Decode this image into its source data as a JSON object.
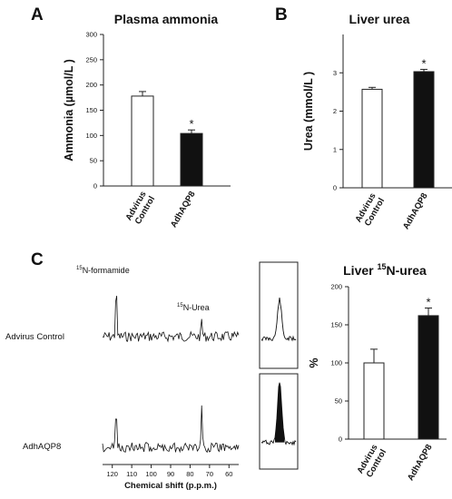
{
  "panel_letters": [
    "A",
    "B",
    "C"
  ],
  "chart_data": [
    {
      "panel": "A",
      "type": "bar",
      "title": "Plasma ammonia",
      "ylabel": "Ammonia (µmol/L )",
      "categories": [
        "Advirus Control",
        "AdhAQP8"
      ],
      "values": [
        178,
        104
      ],
      "errors": [
        9,
        7
      ],
      "ylim": [
        0,
        300
      ],
      "yticks": [
        "0",
        "50",
        "100",
        "150",
        "200",
        "250",
        "300"
      ],
      "significance": [
        "",
        "*"
      ],
      "colors": [
        "#ffffff",
        "#111111"
      ]
    },
    {
      "panel": "B",
      "type": "bar",
      "title": "Liver urea",
      "ylabel": "Urea (mmol/L )",
      "categories": [
        "Advirus Control",
        "AdhAQP8"
      ],
      "values": [
        2.57,
        3.03
      ],
      "errors": [
        0.05,
        0.06
      ],
      "ylim": [
        0,
        4
      ],
      "yticks": [
        "0",
        "1",
        "2",
        "3"
      ],
      "significance": [
        "",
        "*"
      ],
      "colors": [
        "#ffffff",
        "#111111"
      ]
    },
    {
      "panel": "C",
      "type": "bar",
      "title_main": "Liver ",
      "title_sup": "15",
      "title_tail": "N-urea",
      "ylabel": "%",
      "categories": [
        "Advirus Control",
        "AdhAQP8"
      ],
      "values": [
        100,
        162
      ],
      "errors": [
        18,
        10
      ],
      "ylim": [
        0,
        200
      ],
      "yticks": [
        "0",
        "50",
        "100",
        "150",
        "200"
      ],
      "significance": [
        "",
        "*"
      ],
      "colors": [
        "#ffffff",
        "#111111"
      ]
    },
    {
      "panel": "C-spectrum",
      "type": "line",
      "xlabel": "Chemical shift (p.p.m.)",
      "xlim": [
        125,
        55
      ],
      "xticks": [
        "120",
        "110",
        "100",
        "90",
        "80",
        "70",
        "60"
      ],
      "peaks": [
        {
          "sup": "15",
          "label": "N-formamide",
          "ppm": 118
        },
        {
          "sup": "15",
          "label": "N-Urea",
          "ppm": 74
        }
      ],
      "series": [
        {
          "name": "Advirus Control",
          "peak_heights": [
            60,
            18
          ]
        },
        {
          "name": "AdhAQP8",
          "peak_heights": [
            52,
            45
          ]
        }
      ]
    }
  ]
}
